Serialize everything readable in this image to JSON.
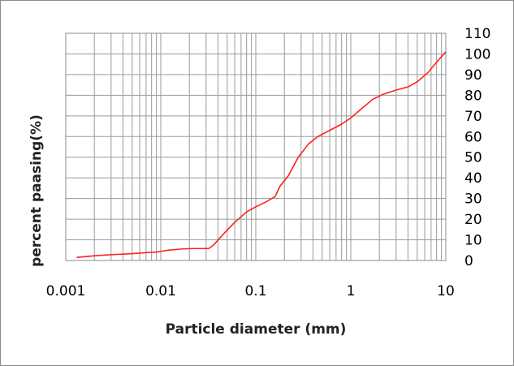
{
  "chart_data": {
    "type": "line",
    "title": "",
    "xlabel": "Particle diameter (mm)",
    "ylabel": "percent paasing(%)",
    "x_scale": "log",
    "xlim": [
      0.001,
      10
    ],
    "ylim": [
      0,
      110
    ],
    "x_ticks": [
      "0.001",
      "0.01",
      "0.1",
      "1",
      "10"
    ],
    "y_ticks": [
      "0",
      "10",
      "20",
      "30",
      "40",
      "50",
      "60",
      "70",
      "80",
      "90",
      "100",
      "110"
    ],
    "y_axis_side": "right",
    "grid": {
      "vertical": "log-minor",
      "horizontal": true
    },
    "legend": "none",
    "series": [
      {
        "color": "#ff2020",
        "x": [
          0.0013,
          0.002,
          0.003,
          0.005,
          0.007,
          0.009,
          0.012,
          0.017,
          0.022,
          0.027,
          0.032,
          0.036,
          0.045,
          0.06,
          0.08,
          0.1,
          0.13,
          0.16,
          0.18,
          0.22,
          0.28,
          0.36,
          0.45,
          0.6,
          0.8,
          1.0,
          1.3,
          1.7,
          2.2,
          3.0,
          4.0,
          5.0,
          6.5,
          8.0,
          10.0
        ],
        "y": [
          1.5,
          2.3,
          2.8,
          3.3,
          3.8,
          4.1,
          5.0,
          5.6,
          5.8,
          5.8,
          5.8,
          7.5,
          12.5,
          18.5,
          23.5,
          26.0,
          28.5,
          31.0,
          36.0,
          41.0,
          50.0,
          56.5,
          60.0,
          63.0,
          66.0,
          69.0,
          73.5,
          78.0,
          80.5,
          82.5,
          84.0,
          86.5,
          91.0,
          96.0,
          101.0
        ]
      }
    ]
  }
}
